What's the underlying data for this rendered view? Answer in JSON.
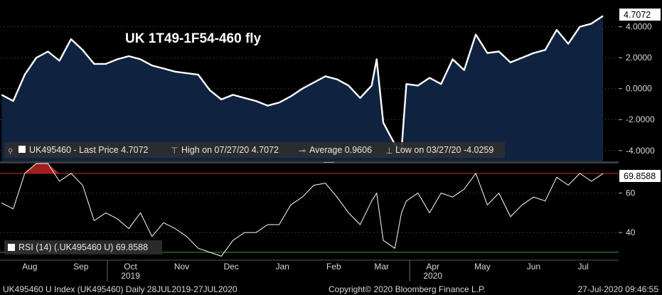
{
  "chart_data": [
    {
      "type": "area",
      "title": "UK 1T49-1F54-460 fly",
      "series_name": "UK495460",
      "legend": {
        "last_price": "UK495460 - Last Price 4.7072",
        "high": "High on 07/27/20 4.7072",
        "average": "Average 0.9606",
        "low": "Low on 03/27/20 -4.0259"
      },
      "last_value_label": "4.7072",
      "ylim": [
        -4.7,
        5.5
      ],
      "yticks": [
        4,
        2,
        0,
        -2,
        -4
      ],
      "ytick_labels": [
        "4.0000",
        "2.0000",
        "0.0000",
        "-2.0000",
        "-4.0000"
      ],
      "x": [
        "2019-07-29",
        "2019-08-05",
        "2019-08-12",
        "2019-08-19",
        "2019-08-26",
        "2019-09-02",
        "2019-09-09",
        "2019-09-16",
        "2019-09-23",
        "2019-09-30",
        "2019-10-07",
        "2019-10-14",
        "2019-10-21",
        "2019-10-28",
        "2019-11-04",
        "2019-11-11",
        "2019-11-18",
        "2019-11-25",
        "2019-12-02",
        "2019-12-09",
        "2019-12-16",
        "2019-12-23",
        "2019-12-30",
        "2020-01-06",
        "2020-01-13",
        "2020-01-20",
        "2020-01-27",
        "2020-02-03",
        "2020-02-10",
        "2020-02-17",
        "2020-02-24",
        "2020-03-02",
        "2020-03-09",
        "2020-03-12",
        "2020-03-16",
        "2020-03-23",
        "2020-03-27",
        "2020-03-30",
        "2020-04-06",
        "2020-04-13",
        "2020-04-20",
        "2020-04-27",
        "2020-05-04",
        "2020-05-11",
        "2020-05-18",
        "2020-05-25",
        "2020-06-01",
        "2020-06-08",
        "2020-06-15",
        "2020-06-22",
        "2020-06-29",
        "2020-07-06",
        "2020-07-13",
        "2020-07-20",
        "2020-07-27"
      ],
      "values": [
        -0.4,
        -0.8,
        0.9,
        2.0,
        2.4,
        1.8,
        3.2,
        2.5,
        1.6,
        1.6,
        1.9,
        2.1,
        1.9,
        1.5,
        1.3,
        1.1,
        1.0,
        0.9,
        -0.1,
        -0.7,
        -0.4,
        -0.6,
        -0.8,
        -1.1,
        -0.9,
        -0.5,
        0.0,
        0.4,
        0.8,
        0.6,
        0.2,
        -0.6,
        0.2,
        1.9,
        -2.2,
        -3.6,
        -4.0,
        0.3,
        0.2,
        0.7,
        0.3,
        1.9,
        1.2,
        3.5,
        2.3,
        2.4,
        1.7,
        2.0,
        2.3,
        2.5,
        3.8,
        2.9,
        4.0,
        4.2,
        4.7
      ]
    },
    {
      "type": "line",
      "legend": "RSI (14) (.UK495460 U) 69.8588",
      "last_value_label": "69.8588",
      "ylim": [
        26,
        75
      ],
      "yticks": [
        60,
        40
      ],
      "ytick_labels": [
        "60",
        "40"
      ],
      "thresholds": [
        70,
        30
      ],
      "x_labels": [
        "Aug",
        "Sep",
        "Oct",
        "Nov",
        "Dec",
        "Jan",
        "Feb",
        "Mar",
        "Apr",
        "May",
        "Jun",
        "Jul"
      ],
      "year_labels": [
        "2019",
        "2020"
      ],
      "x": [
        "2019-07-29",
        "2019-08-05",
        "2019-08-12",
        "2019-08-19",
        "2019-08-26",
        "2019-09-02",
        "2019-09-09",
        "2019-09-16",
        "2019-09-23",
        "2019-09-30",
        "2019-10-07",
        "2019-10-14",
        "2019-10-21",
        "2019-10-28",
        "2019-11-04",
        "2019-11-11",
        "2019-11-18",
        "2019-11-25",
        "2019-12-02",
        "2019-12-09",
        "2019-12-16",
        "2019-12-23",
        "2019-12-30",
        "2020-01-06",
        "2020-01-13",
        "2020-01-20",
        "2020-01-27",
        "2020-02-03",
        "2020-02-10",
        "2020-02-17",
        "2020-02-24",
        "2020-03-02",
        "2020-03-09",
        "2020-03-12",
        "2020-03-16",
        "2020-03-23",
        "2020-03-27",
        "2020-03-30",
        "2020-04-06",
        "2020-04-13",
        "2020-04-20",
        "2020-04-27",
        "2020-05-04",
        "2020-05-11",
        "2020-05-18",
        "2020-05-25",
        "2020-06-01",
        "2020-06-08",
        "2020-06-15",
        "2020-06-22",
        "2020-06-29",
        "2020-07-06",
        "2020-07-13",
        "2020-07-20",
        "2020-07-27"
      ],
      "values": [
        55,
        52,
        70,
        79,
        80,
        66,
        70,
        64,
        46,
        50,
        47,
        42,
        50,
        38,
        45,
        42,
        38,
        32,
        30,
        28,
        36,
        40,
        40,
        44,
        44,
        54,
        58,
        64,
        65,
        58,
        50,
        44,
        56,
        60,
        36,
        32,
        50,
        56,
        60,
        50,
        60,
        58,
        62,
        70,
        54,
        60,
        48,
        54,
        58,
        56,
        68,
        64,
        70,
        66,
        69.9
      ]
    }
  ],
  "footer": {
    "left": "UK495460 U Index (UK495460)  Daily 28JUL2019-27JUL2020",
    "center": "Copyright© 2020 Bloomberg Finance L.P.",
    "right": "27-Jul-2020 09:46:55"
  },
  "colors": {
    "area_fill": "#0f2340",
    "line": "#ffffff",
    "overbought": "#a0201c",
    "oversold": "#2f7f2f",
    "axis_text": "#d8d8d8"
  }
}
